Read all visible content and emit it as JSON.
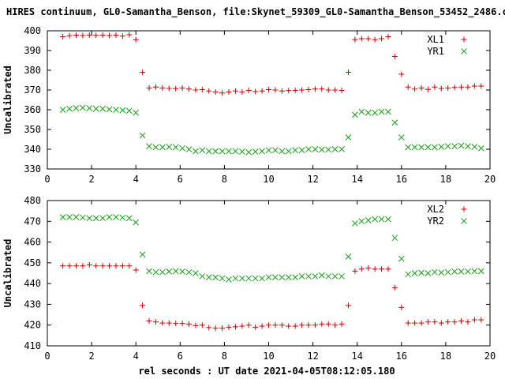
{
  "title": "HIRES continuum, GL0-Samantha_Benson, file:Skynet_59309_GL0-Samantha_Benson_53452_2486.cyb",
  "xlabel": "rel seconds : UT date 2021-04-05T08:12:05.180",
  "colors": {
    "red": "#cc0000",
    "green": "#1a9e1a"
  },
  "chart_data": [
    {
      "type": "scatter",
      "ylabel": "Uncalibrated",
      "xlim": [
        0,
        20
      ],
      "ylim": [
        330,
        400
      ],
      "xticks": [
        "0",
        "2",
        "4",
        "6",
        "8",
        "10",
        "12",
        "14",
        "16",
        "18",
        "20"
      ],
      "yticks": [
        "330",
        "340",
        "350",
        "360",
        "370",
        "380",
        "390",
        "400"
      ],
      "legend_position": "top-right",
      "x": [
        0.7,
        1.0,
        1.3,
        1.6,
        1.9,
        2.2,
        2.5,
        2.8,
        3.1,
        3.4,
        3.7,
        4.0,
        4.3,
        4.6,
        4.9,
        5.2,
        5.5,
        5.8,
        6.1,
        6.4,
        6.7,
        7.0,
        7.3,
        7.6,
        7.9,
        8.2,
        8.5,
        8.8,
        9.1,
        9.4,
        9.7,
        10.0,
        10.3,
        10.6,
        10.9,
        11.2,
        11.5,
        11.8,
        12.1,
        12.4,
        12.7,
        13.0,
        13.3,
        13.6,
        13.9,
        14.2,
        14.5,
        14.8,
        15.1,
        15.4,
        15.7,
        16.0,
        16.3,
        16.6,
        16.9,
        17.2,
        17.5,
        17.8,
        18.1,
        18.4,
        18.7,
        19.0,
        19.3,
        19.6
      ],
      "series": [
        {
          "name": "XL1",
          "marker": "plus",
          "color": "#cc0000",
          "values": [
            397,
            397.5,
            397.8,
            397.6,
            397.8,
            397.7,
            397.8,
            397.6,
            397.8,
            397.3,
            398,
            395.5,
            379,
            371,
            371.5,
            371,
            370.8,
            370.7,
            371,
            370.5,
            370,
            370.2,
            369.5,
            369,
            368.5,
            369,
            369.5,
            369,
            369.8,
            369.2,
            369.5,
            370.2,
            370,
            369.5,
            369.7,
            369.8,
            370,
            370.2,
            370.5,
            370.5,
            370,
            370,
            369.8,
            379,
            395.5,
            396,
            396,
            395.5,
            396,
            397,
            387,
            378,
            371.5,
            370.5,
            371,
            370.3,
            371.5,
            370.8,
            371,
            371.3,
            371.5,
            371.5,
            372,
            372
          ]
        },
        {
          "name": "YR1",
          "marker": "x",
          "color": "#1a9e1a",
          "values": [
            360,
            360.5,
            360.8,
            361,
            360.8,
            360.5,
            360.5,
            360.2,
            360,
            359.8,
            359.5,
            358.5,
            347,
            341.5,
            341,
            341,
            341.2,
            341,
            340.5,
            340,
            339,
            339.5,
            339,
            339,
            339,
            339,
            339,
            338.8,
            338.5,
            338.8,
            339,
            339.5,
            339.5,
            339,
            339,
            339.5,
            339.5,
            340,
            340,
            339.8,
            339.8,
            340,
            340,
            346,
            357.5,
            359,
            358.5,
            358.5,
            359,
            359,
            353.5,
            346,
            341,
            341,
            341,
            341,
            341,
            341.2,
            341.5,
            341.5,
            341.8,
            341.5,
            341.2,
            340.5
          ]
        }
      ]
    },
    {
      "type": "scatter",
      "ylabel": "Uncalibrated",
      "xlim": [
        0,
        20
      ],
      "ylim": [
        410,
        480
      ],
      "xticks": [
        "0",
        "2",
        "4",
        "6",
        "8",
        "10",
        "12",
        "14",
        "16",
        "18",
        "20"
      ],
      "yticks": [
        "410",
        "420",
        "430",
        "440",
        "450",
        "460",
        "470",
        "480"
      ],
      "legend_position": "top-right",
      "x": [
        0.7,
        1.0,
        1.3,
        1.6,
        1.9,
        2.2,
        2.5,
        2.8,
        3.1,
        3.4,
        3.7,
        4.0,
        4.3,
        4.6,
        4.9,
        5.2,
        5.5,
        5.8,
        6.1,
        6.4,
        6.7,
        7.0,
        7.3,
        7.6,
        7.9,
        8.2,
        8.5,
        8.8,
        9.1,
        9.4,
        9.7,
        10.0,
        10.3,
        10.6,
        10.9,
        11.2,
        11.5,
        11.8,
        12.1,
        12.4,
        12.7,
        13.0,
        13.3,
        13.6,
        13.9,
        14.2,
        14.5,
        14.8,
        15.1,
        15.4,
        15.7,
        16.0,
        16.3,
        16.6,
        16.9,
        17.2,
        17.5,
        17.8,
        18.1,
        18.4,
        18.7,
        19.0,
        19.3,
        19.6
      ],
      "series": [
        {
          "name": "XL2",
          "marker": "plus",
          "color": "#cc0000",
          "values": [
            448.5,
            448.5,
            448.5,
            448.5,
            449,
            448.5,
            448.5,
            448.5,
            448.5,
            448.5,
            448.5,
            446.5,
            429.5,
            422,
            421.5,
            421,
            421,
            420.8,
            420.8,
            420.5,
            419.8,
            420,
            418.8,
            418.5,
            418.5,
            419,
            419.2,
            419.5,
            420,
            419,
            419.5,
            420,
            420,
            420,
            419.5,
            419.5,
            420,
            420,
            420,
            420.5,
            420.5,
            420,
            420.5,
            429.5,
            446,
            447,
            447.5,
            447,
            447,
            447,
            438,
            428.5,
            421,
            421,
            421,
            421.5,
            421.5,
            421,
            421.5,
            421.5,
            422,
            421.5,
            422.5,
            422.5
          ]
        },
        {
          "name": "YR2",
          "marker": "x",
          "color": "#1a9e1a",
          "values": [
            472,
            472,
            472,
            471.8,
            471.5,
            471.5,
            471.5,
            472,
            472,
            471.8,
            471.5,
            469.5,
            454,
            446,
            445.5,
            445.5,
            445.8,
            446,
            445.8,
            445.5,
            445,
            443.5,
            443,
            443,
            442.5,
            442,
            442.5,
            442.5,
            442.5,
            442.5,
            442.5,
            443,
            443,
            443,
            443,
            443,
            443.5,
            443.5,
            443.5,
            444,
            443.5,
            443.5,
            443.5,
            453,
            469,
            470,
            470.5,
            471,
            471,
            471,
            462,
            452,
            444.5,
            445,
            445.2,
            445,
            445.5,
            445.3,
            445.5,
            445.8,
            445.8,
            445.8,
            446,
            446
          ]
        }
      ]
    }
  ]
}
